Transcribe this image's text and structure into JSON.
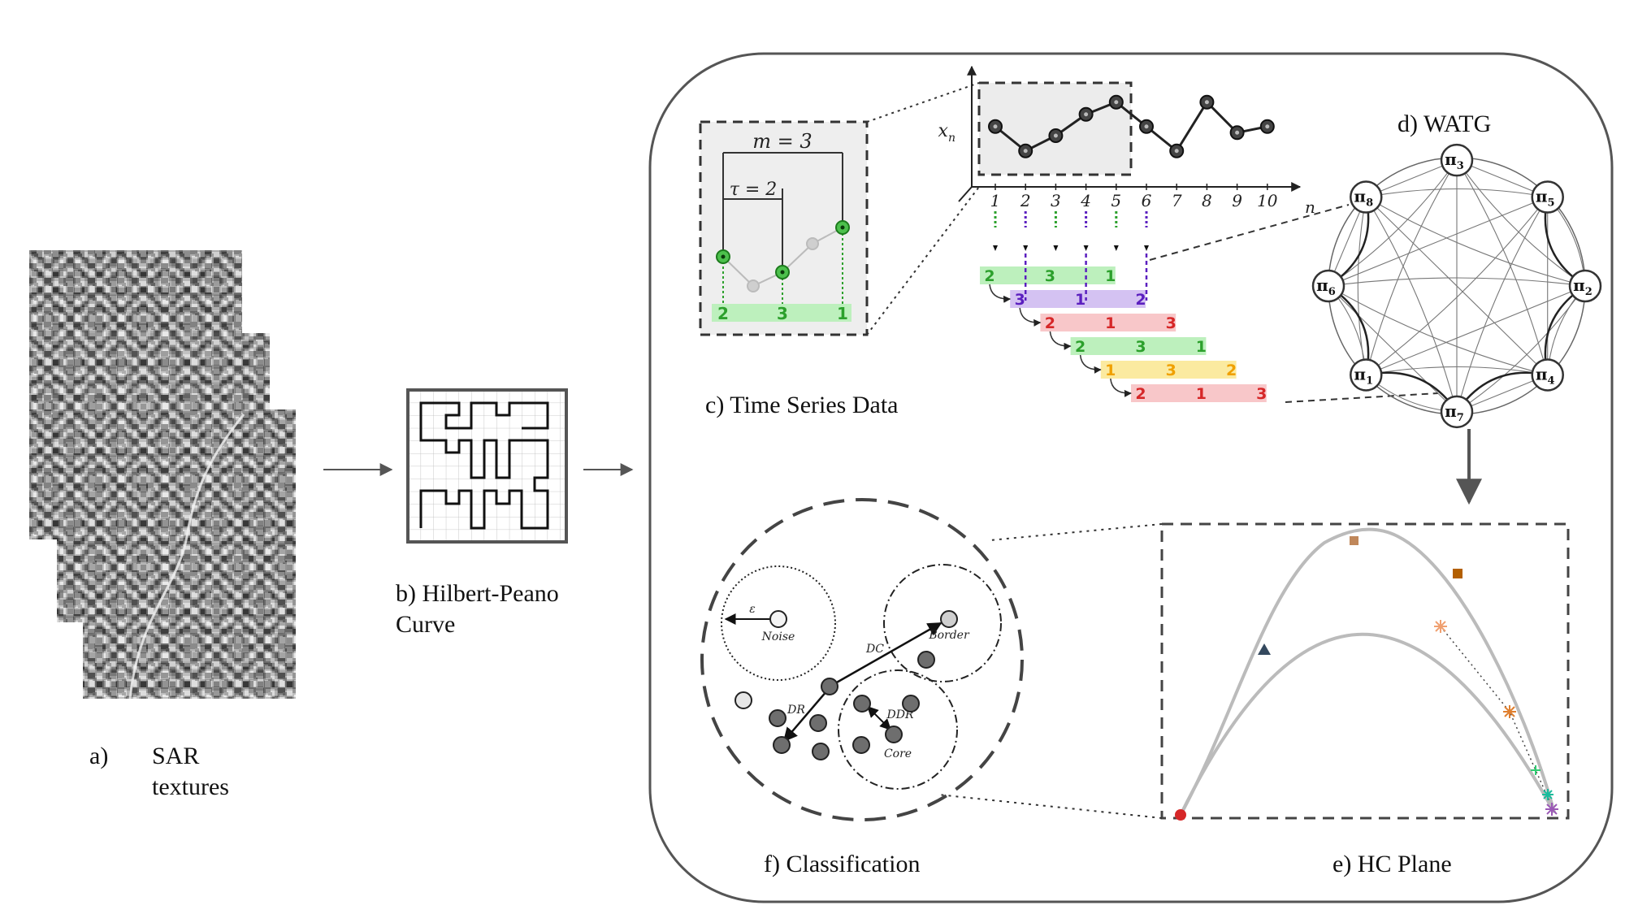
{
  "captions": {
    "a_prefix": "a)",
    "a_line1": "SAR",
    "a_line2": "textures",
    "b_line1": "b) Hilbert-Peano",
    "b_line2": "Curve",
    "c": "c) Time Series Data",
    "d": "d) WATG",
    "e": "e) HC Plane",
    "f": "f) Classification"
  },
  "embedding": {
    "m_label": "m = 3",
    "tau_label": "τ = 2",
    "inset_pattern": [
      "2",
      "3",
      "1"
    ]
  },
  "time_series": {
    "y_label": "x",
    "y_sub": "n",
    "x_label": "n",
    "n_ticks": [
      "1",
      "2",
      "3",
      "4",
      "5",
      "6",
      "7",
      "8",
      "9",
      "10"
    ],
    "values": [
      0.55,
      0.15,
      0.4,
      0.75,
      0.95,
      0.55,
      0.15,
      0.95,
      0.45,
      0.55
    ]
  },
  "patterns": [
    {
      "digits": [
        "2",
        "3",
        "1"
      ],
      "colors": [
        "#2ca02c",
        "#2ca02c",
        "#2ca02c"
      ],
      "band": "#bdf0bd"
    },
    {
      "digits": [
        "3",
        "1",
        "2"
      ],
      "colors": [
        "#5b1fbf",
        "#5b1fbf",
        "#5b1fbf"
      ],
      "band": "#d4c2f2"
    },
    {
      "digits": [
        "2",
        "1",
        "3"
      ],
      "colors": [
        "#d62728",
        "#d62728",
        "#d62728"
      ],
      "band": "#f8c7c9"
    },
    {
      "digits": [
        "2",
        "3",
        "1"
      ],
      "colors": [
        "#2ca02c",
        "#2ca02c",
        "#2ca02c"
      ],
      "band": "#bdf0bd"
    },
    {
      "digits": [
        "1",
        "3",
        "2"
      ],
      "colors": [
        "#f0a000",
        "#f0a000",
        "#f0a000"
      ],
      "band": "#fbeaa0"
    },
    {
      "digits": [
        "2",
        "1",
        "3"
      ],
      "colors": [
        "#d62728",
        "#d62728",
        "#d62728"
      ],
      "band": "#f8c7c9"
    }
  ],
  "watg_nodes": [
    {
      "sym": "π",
      "sub": "3"
    },
    {
      "sym": "π",
      "sub": "5"
    },
    {
      "sym": "π",
      "sub": "2"
    },
    {
      "sym": "π",
      "sub": "4"
    },
    {
      "sym": "π",
      "sub": "7"
    },
    {
      "sym": "π",
      "sub": "1"
    },
    {
      "sym": "π",
      "sub": "6"
    },
    {
      "sym": "π",
      "sub": "8"
    }
  ],
  "classification": {
    "epsilon": "ε",
    "noise": "Noise",
    "border": "Border",
    "core": "Core",
    "dc": "DC",
    "dr": "DR",
    "ddr": "DDR"
  },
  "colors": {
    "green": "#2ca02c",
    "purple": "#5b1fbf",
    "red": "#d62728",
    "orange": "#f0a000",
    "frame": "#555555"
  }
}
